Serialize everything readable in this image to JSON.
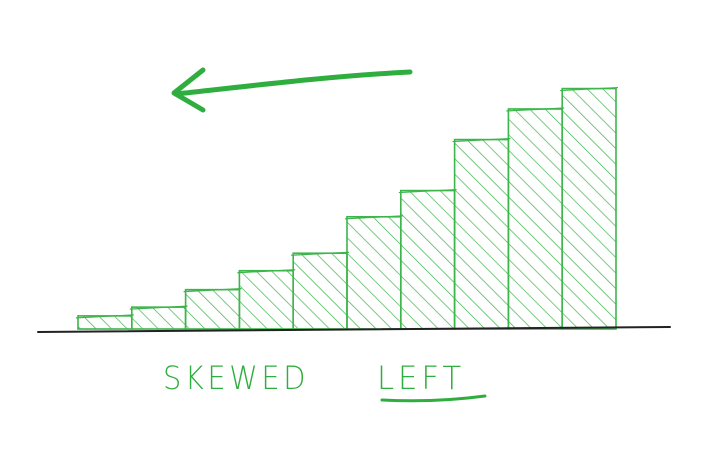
{
  "chart_data": {
    "type": "bar",
    "title": "",
    "xlabel": "",
    "ylabel": "",
    "values": [
      9,
      15,
      27,
      40,
      52,
      77,
      95,
      130,
      151,
      165
    ],
    "ylim": [
      0,
      175
    ],
    "grid": false,
    "legend": "none",
    "annotations": {
      "arrow_direction": "left",
      "caption_word1": "SKEWED",
      "caption_word2": "LEFT"
    }
  },
  "colors": {
    "bar_stroke": "#3cb54a",
    "hatch": "#3cb54a",
    "axis": "#222222",
    "arrow": "#2fae3f",
    "caption": "#2fae3f",
    "background": "#ffffff"
  }
}
